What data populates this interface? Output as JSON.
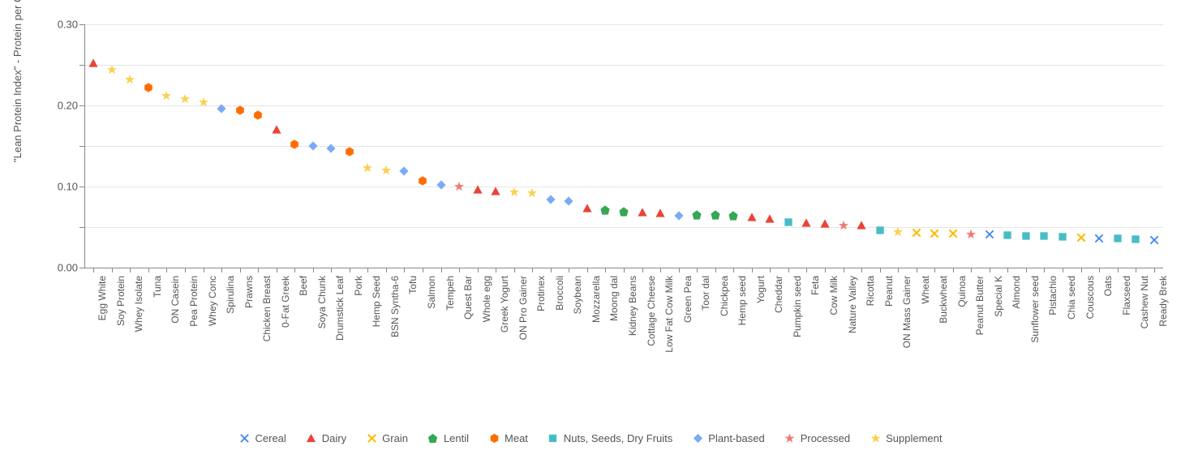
{
  "chart": {
    "type": "scatter-categorical",
    "y_axis_title": "\"Lean Protein Index\" - Protein per Calorie (g/kcal)",
    "ylim": [
      0.0,
      0.3
    ],
    "ytick_step": 0.05,
    "ytick_labels": [
      "0.00",
      "0.05",
      "0.10",
      "0.15",
      "0.20",
      "0.25",
      "0.30"
    ],
    "ytick_show_label": [
      true,
      false,
      true,
      false,
      true,
      false,
      true
    ],
    "background_color": "#ffffff",
    "grid_color": "#e6e6e6",
    "axis_color": "#888888",
    "label_fontsize": 12,
    "tick_fontsize": 13,
    "categories": {
      "Cereal": {
        "color": "#4285f4",
        "marker": "x"
      },
      "Dairy": {
        "color": "#ea4335",
        "marker": "triangle"
      },
      "Grain": {
        "color": "#fbbc04",
        "marker": "xsimple"
      },
      "Lentil": {
        "color": "#34a853",
        "marker": "pentagon"
      },
      "Meat": {
        "color": "#ff6d01",
        "marker": "hexagon"
      },
      "Nuts, Seeds, Dry Fruits": {
        "color": "#46bdc6",
        "marker": "square"
      },
      "Plant-based": {
        "color": "#7baaf7",
        "marker": "diamond"
      },
      "Processed": {
        "color": "#f07b72",
        "marker": "star"
      },
      "Supplement": {
        "color": "#fcd04f",
        "marker": "star"
      }
    },
    "legend_order": [
      "Cereal",
      "Dairy",
      "Grain",
      "Lentil",
      "Meat",
      "Nuts, Seeds, Dry Fruits",
      "Plant-based",
      "Processed",
      "Supplement"
    ],
    "data": [
      {
        "label": "Egg White",
        "value": 0.252,
        "cat": "Dairy"
      },
      {
        "label": "Soy Protein",
        "value": 0.244,
        "cat": "Supplement"
      },
      {
        "label": "Whey Isolate",
        "value": 0.232,
        "cat": "Supplement"
      },
      {
        "label": "Tuna",
        "value": 0.222,
        "cat": "Meat"
      },
      {
        "label": "ON Casein",
        "value": 0.212,
        "cat": "Supplement"
      },
      {
        "label": "Pea Protein",
        "value": 0.208,
        "cat": "Supplement"
      },
      {
        "label": "Whey Conc",
        "value": 0.204,
        "cat": "Supplement"
      },
      {
        "label": "Spirulina",
        "value": 0.196,
        "cat": "Plant-based"
      },
      {
        "label": "Prawns",
        "value": 0.194,
        "cat": "Meat"
      },
      {
        "label": "Chicken Breast",
        "value": 0.188,
        "cat": "Meat"
      },
      {
        "label": "0-Fat Greek",
        "value": 0.17,
        "cat": "Dairy"
      },
      {
        "label": "Beef",
        "value": 0.152,
        "cat": "Meat"
      },
      {
        "label": "Soya Chunk",
        "value": 0.15,
        "cat": "Plant-based"
      },
      {
        "label": "Drumstick Leaf",
        "value": 0.147,
        "cat": "Plant-based"
      },
      {
        "label": "Pork",
        "value": 0.143,
        "cat": "Meat"
      },
      {
        "label": "Hemp Seed",
        "value": 0.123,
        "cat": "Supplement"
      },
      {
        "label": "BSN Syntha-6",
        "value": 0.12,
        "cat": "Supplement"
      },
      {
        "label": "Tofu",
        "value": 0.119,
        "cat": "Plant-based"
      },
      {
        "label": "Salmon",
        "value": 0.107,
        "cat": "Meat"
      },
      {
        "label": "Tempeh",
        "value": 0.102,
        "cat": "Plant-based"
      },
      {
        "label": "Quest Bar",
        "value": 0.1,
        "cat": "Processed"
      },
      {
        "label": "Whole egg",
        "value": 0.096,
        "cat": "Dairy"
      },
      {
        "label": "Greek Yogurt",
        "value": 0.094,
        "cat": "Dairy"
      },
      {
        "label": "ON Pro Gainer",
        "value": 0.093,
        "cat": "Supplement"
      },
      {
        "label": "Protinex",
        "value": 0.092,
        "cat": "Supplement"
      },
      {
        "label": "Broccoli",
        "value": 0.084,
        "cat": "Plant-based"
      },
      {
        "label": "Soybean",
        "value": 0.082,
        "cat": "Plant-based"
      },
      {
        "label": "Mozzarella",
        "value": 0.073,
        "cat": "Dairy"
      },
      {
        "label": "Moong dal",
        "value": 0.071,
        "cat": "Lentil"
      },
      {
        "label": "Kidney Beans",
        "value": 0.069,
        "cat": "Lentil"
      },
      {
        "label": "Cottage Cheese",
        "value": 0.068,
        "cat": "Dairy"
      },
      {
        "label": "Low Fat Cow Milk",
        "value": 0.067,
        "cat": "Dairy"
      },
      {
        "label": "Green Pea",
        "value": 0.064,
        "cat": "Plant-based"
      },
      {
        "label": "Toor dal",
        "value": 0.065,
        "cat": "Lentil"
      },
      {
        "label": "Chickpea",
        "value": 0.065,
        "cat": "Lentil"
      },
      {
        "label": "Hemp seed",
        "value": 0.064,
        "cat": "Lentil"
      },
      {
        "label": "Yogurt",
        "value": 0.062,
        "cat": "Dairy"
      },
      {
        "label": "Cheddar",
        "value": 0.06,
        "cat": "Dairy"
      },
      {
        "label": "Pumpkin seed",
        "value": 0.056,
        "cat": "Nuts, Seeds, Dry Fruits"
      },
      {
        "label": "Feta",
        "value": 0.055,
        "cat": "Dairy"
      },
      {
        "label": "Cow Milk",
        "value": 0.054,
        "cat": "Dairy"
      },
      {
        "label": "Nature Valley",
        "value": 0.052,
        "cat": "Processed"
      },
      {
        "label": "Ricotta",
        "value": 0.052,
        "cat": "Dairy"
      },
      {
        "label": "Peanut",
        "value": 0.046,
        "cat": "Nuts, Seeds, Dry Fruits"
      },
      {
        "label": "ON Mass Gainer",
        "value": 0.044,
        "cat": "Supplement"
      },
      {
        "label": "Wheat",
        "value": 0.043,
        "cat": "Grain"
      },
      {
        "label": "Buckwheat",
        "value": 0.042,
        "cat": "Grain"
      },
      {
        "label": "Quinoa",
        "value": 0.042,
        "cat": "Grain"
      },
      {
        "label": "Peanut Butter",
        "value": 0.041,
        "cat": "Processed"
      },
      {
        "label": "Special K",
        "value": 0.041,
        "cat": "Cereal"
      },
      {
        "label": "Almond",
        "value": 0.04,
        "cat": "Nuts, Seeds, Dry Fruits"
      },
      {
        "label": "Sunflower seed",
        "value": 0.039,
        "cat": "Nuts, Seeds, Dry Fruits"
      },
      {
        "label": "Pistachio",
        "value": 0.039,
        "cat": "Nuts, Seeds, Dry Fruits"
      },
      {
        "label": "Chia seed",
        "value": 0.038,
        "cat": "Nuts, Seeds, Dry Fruits"
      },
      {
        "label": "Couscous",
        "value": 0.037,
        "cat": "Grain"
      },
      {
        "label": "Oats",
        "value": 0.036,
        "cat": "Cereal"
      },
      {
        "label": "Flaxseed",
        "value": 0.036,
        "cat": "Nuts, Seeds, Dry Fruits"
      },
      {
        "label": "Cashew Nut",
        "value": 0.035,
        "cat": "Nuts, Seeds, Dry Fruits"
      },
      {
        "label": "Ready Brek",
        "value": 0.034,
        "cat": "Cereal"
      }
    ]
  }
}
